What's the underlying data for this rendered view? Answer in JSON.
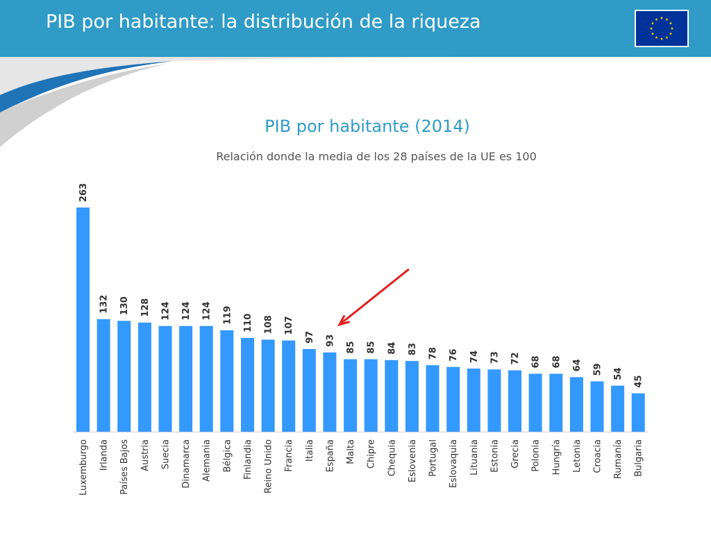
{
  "header": {
    "title": "PIB por habitante: la distribución de la riqueza",
    "flag_icon": "eu-flag-icon",
    "header_color": "#2f9bc6"
  },
  "chart_data": {
    "type": "bar",
    "title": "PIB por habitante (2014)",
    "subtitle": "Relación donde la media de los 28 países de la UE es 100",
    "xlabel": "",
    "ylabel": "",
    "categories": [
      "Luxemburgo",
      "Irlanda",
      "Países Bajos",
      "Austria",
      "Suecia",
      "Dinamarca",
      "Alemania",
      "Bélgica",
      "Finlandia",
      "Reino Unido",
      "Francia",
      "Italia",
      "España",
      "Malta",
      "Chipre",
      "Chequia",
      "Eslovenia",
      "Portugal",
      "Eslovaquia",
      "Lituania",
      "Estonia",
      "Grecia",
      "Polonia",
      "Hungría",
      "Letonia",
      "Croacia",
      "Rumanía",
      "Bulgaria"
    ],
    "values": [
      263,
      132,
      130,
      128,
      124,
      124,
      124,
      119,
      110,
      108,
      107,
      97,
      93,
      85,
      85,
      84,
      83,
      78,
      76,
      74,
      73,
      72,
      68,
      68,
      64,
      59,
      54,
      45
    ],
    "ylim": [
      0,
      263
    ],
    "grid": false,
    "bar_color": "#3399ff",
    "highlight": "España",
    "arrow_color": "#e32020"
  }
}
